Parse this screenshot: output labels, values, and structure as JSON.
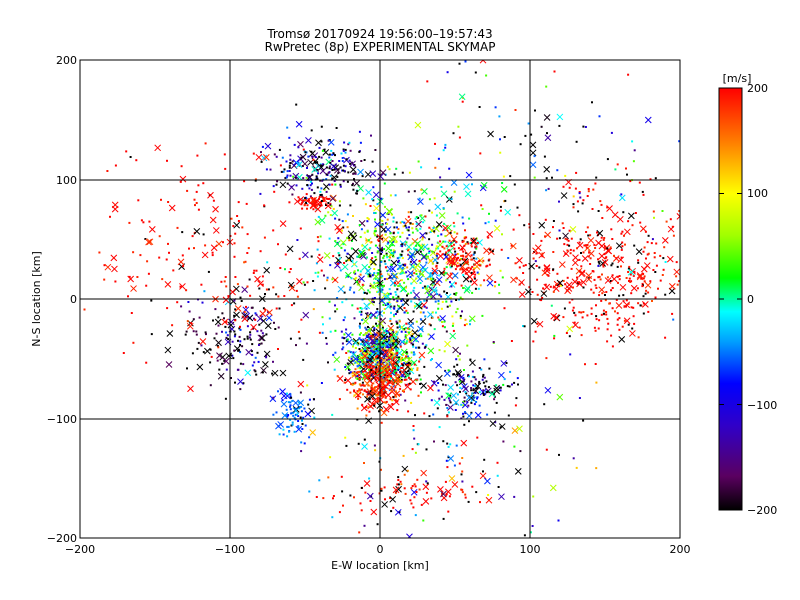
{
  "chart_data": {
    "type": "scatter",
    "title": "Tromsø 20170924 19:56:00–19:57:43",
    "subtitle": "RwPretec (8p) EXPERIMENTAL SKYMAP",
    "xlabel": "E-W location [km]",
    "ylabel": "N-S location [km]",
    "xlim": [
      -200,
      200
    ],
    "ylim": [
      -200,
      200
    ],
    "x_ticks": [
      "−200",
      "−100",
      "0",
      "100",
      "200"
    ],
    "y_ticks": [
      "−200",
      "−100",
      "0",
      "100",
      "200"
    ],
    "grid_lines": [
      -100,
      0,
      100
    ],
    "colorbar": {
      "label": "[m/s]",
      "range": [
        -200,
        200
      ],
      "ticks": [
        "200",
        "100",
        "0",
        "−100",
        "−200"
      ],
      "tick_values": [
        200,
        100,
        0,
        -100,
        -200
      ],
      "colors": [
        "#000000",
        "#5a0060",
        "#3000c8",
        "#0000ff",
        "#00a0ff",
        "#00ffff",
        "#00ff00",
        "#a0ff00",
        "#ffff00",
        "#ff8000",
        "#ff0000"
      ]
    },
    "markers": [
      "small dot",
      "cross"
    ],
    "clusters": [
      {
        "x": 0,
        "y": -45,
        "spread_x": 12,
        "spread_y": 14,
        "velocity": 0,
        "spread_v": 120,
        "count": 650
      },
      {
        "x": 15,
        "y": 25,
        "spread_x": 28,
        "spread_y": 35,
        "velocity": 30,
        "spread_v": 90,
        "count": 900
      },
      {
        "x": -40,
        "y": 110,
        "spread_x": 18,
        "spread_y": 12,
        "velocity": -150,
        "spread_v": 80,
        "count": 230
      },
      {
        "x": -45,
        "y": 82,
        "spread_x": 6,
        "spread_y": 3,
        "velocity": 200,
        "spread_v": 10,
        "count": 60
      },
      {
        "x": 150,
        "y": 25,
        "spread_x": 30,
        "spread_y": 30,
        "velocity": 200,
        "spread_v": 10,
        "count": 450
      },
      {
        "x": 0,
        "y": -70,
        "spread_x": 10,
        "spread_y": 12,
        "velocity": 190,
        "spread_v": 20,
        "count": 300
      },
      {
        "x": -58,
        "y": -95,
        "spread_x": 6,
        "spread_y": 10,
        "velocity": -60,
        "spread_v": 20,
        "count": 80
      },
      {
        "x": 60,
        "y": -75,
        "spread_x": 14,
        "spread_y": 14,
        "velocity": -120,
        "spread_v": 100,
        "count": 160
      },
      {
        "x": 55,
        "y": 35,
        "spread_x": 8,
        "spread_y": 10,
        "velocity": 200,
        "spread_v": 10,
        "count": 120
      },
      {
        "x": -95,
        "y": -35,
        "spread_x": 18,
        "spread_y": 22,
        "velocity": -170,
        "spread_v": 60,
        "count": 180
      },
      {
        "x": -110,
        "y": 40,
        "spread_x": 45,
        "spread_y": 45,
        "velocity": 200,
        "spread_v": 10,
        "count": 220
      },
      {
        "x": 20,
        "y": -162,
        "spread_x": 25,
        "spread_y": 8,
        "velocity": 200,
        "spread_v": 10,
        "count": 70
      },
      {
        "x": 90,
        "y": 100,
        "spread_x": 55,
        "spread_y": 60,
        "velocity": 0,
        "spread_v": 200,
        "count": 160
      },
      {
        "x": 40,
        "y": -130,
        "spread_x": 55,
        "spread_y": 40,
        "velocity": 0,
        "spread_v": 200,
        "count": 140
      }
    ]
  }
}
